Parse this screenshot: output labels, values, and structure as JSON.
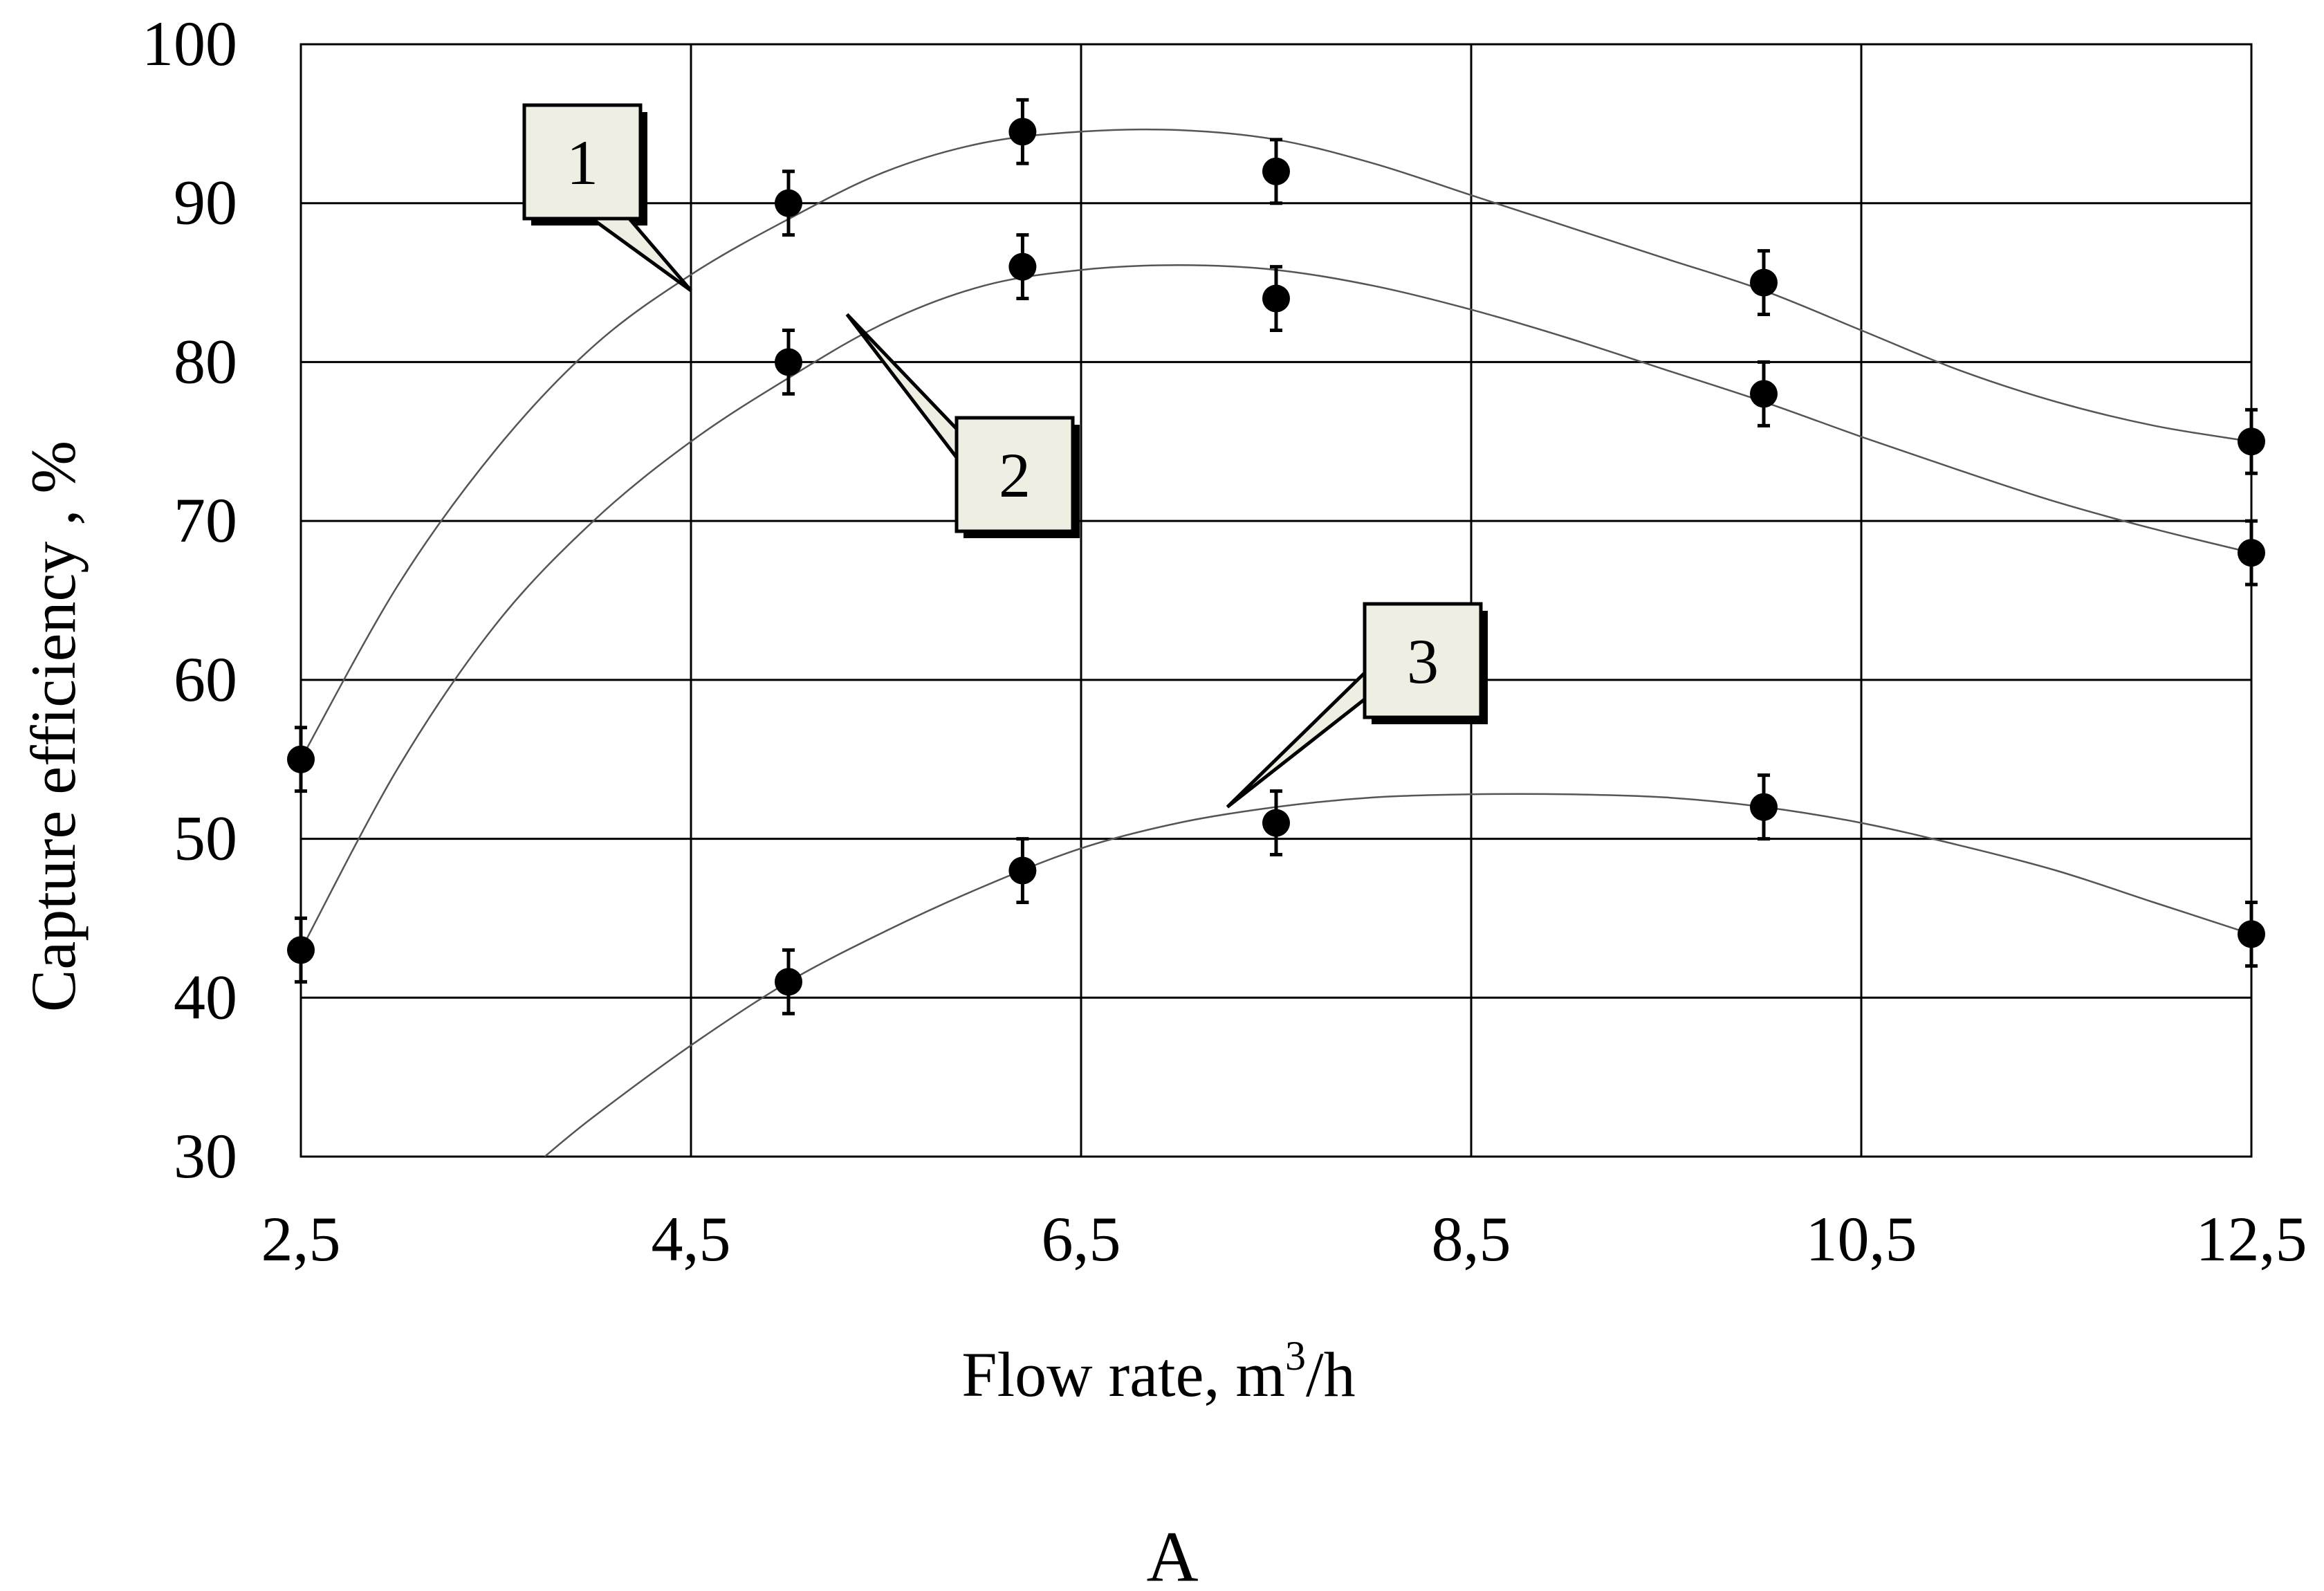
{
  "chart_data": {
    "type": "scatter",
    "title": "",
    "xlabel_main": "Flow rate, m",
    "xlabel_sup": "3",
    "xlabel_tail": "/h",
    "ylabel": "Capture efficiency  , %",
    "panel_label": "A",
    "xlim": [
      2.5,
      12.5
    ],
    "ylim": [
      30,
      100
    ],
    "x_ticks": [
      {
        "value": 2.5,
        "label": "2,5"
      },
      {
        "value": 4.5,
        "label": "4,5"
      },
      {
        "value": 6.5,
        "label": "6,5"
      },
      {
        "value": 8.5,
        "label": "8,5"
      },
      {
        "value": 10.5,
        "label": "10,5"
      },
      {
        "value": 12.5,
        "label": "12,5"
      }
    ],
    "y_ticks": [
      {
        "value": 30,
        "label": "30"
      },
      {
        "value": 40,
        "label": "40"
      },
      {
        "value": 50,
        "label": "50"
      },
      {
        "value": 60,
        "label": "60"
      },
      {
        "value": 70,
        "label": "70"
      },
      {
        "value": 80,
        "label": "80"
      },
      {
        "value": 90,
        "label": "90"
      },
      {
        "value": 100,
        "label": "100"
      }
    ],
    "grid": true,
    "legend": "none",
    "error_bar": 2,
    "series": [
      {
        "label": "1",
        "x": [
          2.5,
          5.0,
          6.2,
          7.5,
          10.0,
          12.5
        ],
        "y": [
          55,
          90,
          94.5,
          92,
          85,
          75
        ],
        "curve": [
          [
            2.5,
            55
          ],
          [
            3.0,
            66
          ],
          [
            3.5,
            74.5
          ],
          [
            4.0,
            81
          ],
          [
            4.5,
            85.5
          ],
          [
            5.0,
            89
          ],
          [
            5.5,
            92
          ],
          [
            6.0,
            93.8
          ],
          [
            6.5,
            94.5
          ],
          [
            7.0,
            94.6
          ],
          [
            7.5,
            94
          ],
          [
            8.0,
            92.5
          ],
          [
            8.5,
            90.5
          ],
          [
            9.0,
            88.5
          ],
          [
            9.5,
            86.5
          ],
          [
            10.0,
            84.5
          ],
          [
            10.5,
            82
          ],
          [
            11.0,
            79.5
          ],
          [
            11.5,
            77.5
          ],
          [
            12.0,
            76
          ],
          [
            12.5,
            75
          ]
        ]
      },
      {
        "label": "2",
        "x": [
          2.5,
          5.0,
          6.2,
          7.5,
          10.0,
          12.5
        ],
        "y": [
          43,
          80,
          86,
          84,
          78,
          68
        ],
        "curve": [
          [
            2.5,
            43
          ],
          [
            3.0,
            54.5
          ],
          [
            3.5,
            63.5
          ],
          [
            4.0,
            70
          ],
          [
            4.5,
            75
          ],
          [
            5.0,
            79
          ],
          [
            5.5,
            82.5
          ],
          [
            6.0,
            84.8
          ],
          [
            6.5,
            85.8
          ],
          [
            7.0,
            86.1
          ],
          [
            7.5,
            85.8
          ],
          [
            8.0,
            84.8
          ],
          [
            8.5,
            83.3
          ],
          [
            9.0,
            81.5
          ],
          [
            9.5,
            79.5
          ],
          [
            10.0,
            77.5
          ],
          [
            10.5,
            75.3
          ],
          [
            11.0,
            73.2
          ],
          [
            11.5,
            71.2
          ],
          [
            12.0,
            69.5
          ],
          [
            12.5,
            68
          ]
        ]
      },
      {
        "label": "3",
        "x": [
          5.0,
          6.2,
          7.5,
          10.0,
          12.5
        ],
        "y": [
          41,
          48,
          51,
          52,
          44
        ],
        "curve": [
          [
            3.75,
            30
          ],
          [
            4.0,
            32.5
          ],
          [
            4.5,
            37
          ],
          [
            5.0,
            41
          ],
          [
            5.5,
            44.2
          ],
          [
            6.0,
            47
          ],
          [
            6.5,
            49.4
          ],
          [
            7.0,
            51
          ],
          [
            7.5,
            52
          ],
          [
            8.0,
            52.6
          ],
          [
            8.5,
            52.8
          ],
          [
            9.0,
            52.8
          ],
          [
            9.5,
            52.6
          ],
          [
            10.0,
            52
          ],
          [
            10.5,
            51
          ],
          [
            11.0,
            49.6
          ],
          [
            11.5,
            48
          ],
          [
            12.0,
            46
          ],
          [
            12.5,
            44
          ]
        ]
      }
    ],
    "callouts": [
      {
        "text": "1",
        "series": "1",
        "x": 4.5,
        "y": 84.5
      },
      {
        "text": "2",
        "series": "2",
        "x": 5.3,
        "y": 83
      },
      {
        "text": "3",
        "series": "3",
        "x": 7.25,
        "y": 52
      }
    ]
  }
}
